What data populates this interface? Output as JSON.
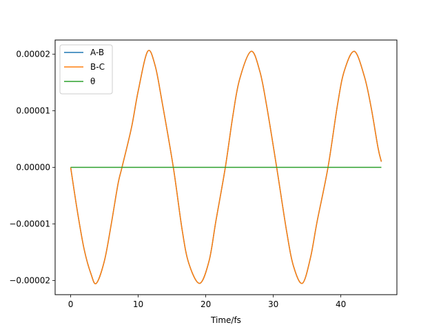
{
  "chart_data": {
    "type": "line",
    "title": "",
    "xlabel": "Time/fs",
    "ylabel": "",
    "xlim": [
      -2.3,
      48.3
    ],
    "ylim": [
      -2.25e-05,
      2.25e-05
    ],
    "x_ticks": [
      0,
      10,
      20,
      30,
      40
    ],
    "x_tick_labels": [
      "0",
      "10",
      "20",
      "30",
      "40"
    ],
    "y_ticks": [
      -2e-05,
      -1e-05,
      0,
      1e-05,
      2e-05
    ],
    "y_tick_labels": [
      "−0.00002",
      "−0.00001",
      "0.00000",
      "0.00001",
      "0.00002"
    ],
    "grid": false,
    "legend_position": "top-left",
    "series": [
      {
        "name": "A-B",
        "color": "#1f77b4",
        "x": [
          0,
          1.0,
          2.0,
          3.0,
          3.8,
          5.0,
          6.0,
          7.0,
          7.6,
          9.0,
          10.0,
          11.4,
          12.5,
          13.5,
          15.2,
          16.5,
          17.5,
          19.1,
          20.5,
          21.5,
          22.9,
          24.0,
          25.0,
          26.7,
          28.0,
          29.0,
          30.5,
          32.0,
          33.0,
          34.3,
          35.5,
          36.5,
          38.1,
          39.5,
          40.5,
          42.0,
          43.5,
          44.5,
          45.5,
          46.0
        ],
        "y": [
          0,
          -7.8e-06,
          -1.45e-05,
          -1.88e-05,
          -2.05e-05,
          -1.65e-05,
          -1.01e-05,
          -3e-06,
          0,
          7e-06,
          1.35e-05,
          2.05e-05,
          1.8e-05,
          1.18e-05,
          0,
          -1.1e-05,
          -1.7e-05,
          -2.05e-05,
          -1.65e-05,
          -9.5e-06,
          0,
          9e-06,
          1.55e-05,
          2.05e-05,
          1.7e-05,
          1.1e-05,
          0,
          -1.15e-05,
          -1.75e-05,
          -2.05e-05,
          -1.6e-05,
          -9.5e-06,
          0,
          1.1e-05,
          1.7e-05,
          2.05e-05,
          1.6e-05,
          1.05e-05,
          3.5e-06,
          1e-06
        ]
      },
      {
        "name": "B-C",
        "color": "#ff7f0e",
        "x": [
          0,
          1.0,
          2.0,
          3.0,
          3.8,
          5.0,
          6.0,
          7.0,
          7.6,
          9.0,
          10.0,
          11.4,
          12.5,
          13.5,
          15.2,
          16.5,
          17.5,
          19.1,
          20.5,
          21.5,
          22.9,
          24.0,
          25.0,
          26.7,
          28.0,
          29.0,
          30.5,
          32.0,
          33.0,
          34.3,
          35.5,
          36.5,
          38.1,
          39.5,
          40.5,
          42.0,
          43.5,
          44.5,
          45.5,
          46.0
        ],
        "y": [
          0,
          -7.8e-06,
          -1.45e-05,
          -1.88e-05,
          -2.05e-05,
          -1.65e-05,
          -1.01e-05,
          -3e-06,
          0,
          7e-06,
          1.35e-05,
          2.05e-05,
          1.8e-05,
          1.18e-05,
          0,
          -1.1e-05,
          -1.7e-05,
          -2.05e-05,
          -1.65e-05,
          -9.5e-06,
          0,
          9e-06,
          1.55e-05,
          2.05e-05,
          1.7e-05,
          1.1e-05,
          0,
          -1.15e-05,
          -1.75e-05,
          -2.05e-05,
          -1.6e-05,
          -9.5e-06,
          0,
          1.1e-05,
          1.7e-05,
          2.05e-05,
          1.6e-05,
          1.05e-05,
          3.5e-06,
          1e-06
        ]
      },
      {
        "name": "θ",
        "color": "#2ca02c",
        "x": [
          0,
          46.0
        ],
        "y": [
          0,
          0
        ]
      }
    ]
  }
}
